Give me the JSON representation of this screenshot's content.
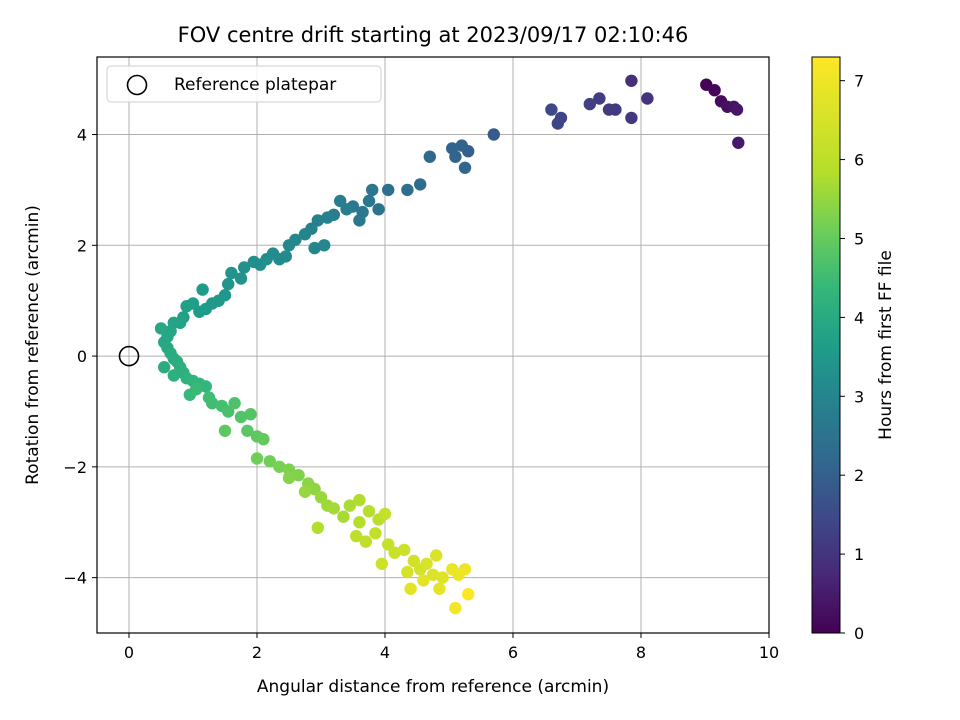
{
  "chart_data": {
    "type": "scatter",
    "title": "FOV centre drift starting at 2023/09/17 02:10:46",
    "xlabel": "Angular distance from reference (arcmin)",
    "ylabel": "Rotation from reference (arcmin)",
    "colorbar_label": "Hours from first FF file",
    "xlim": [
      -0.5,
      10
    ],
    "ylim": [
      -5,
      5.4
    ],
    "clim": [
      0,
      7.3
    ],
    "xticks": [
      0,
      2,
      4,
      6,
      8,
      10
    ],
    "yticks": [
      -4,
      -2,
      0,
      2,
      4
    ],
    "colorbar_ticks": [
      0,
      1,
      2,
      3,
      4,
      5,
      6,
      7
    ],
    "grid": true,
    "colormap": "viridis",
    "legend": {
      "placement": "top-left",
      "entries": [
        "Reference platepar"
      ]
    },
    "reference_point": {
      "x": 0,
      "y": 0
    },
    "points": [
      [
        9.02,
        4.9,
        0.05
      ],
      [
        9.15,
        4.8,
        0.1
      ],
      [
        9.25,
        4.6,
        0.2
      ],
      [
        9.35,
        4.5,
        0.28
      ],
      [
        9.45,
        4.5,
        0.35
      ],
      [
        9.5,
        4.45,
        0.4
      ],
      [
        9.52,
        3.85,
        0.45
      ],
      [
        7.85,
        4.97,
        0.9
      ],
      [
        8.1,
        4.65,
        1.0
      ],
      [
        7.85,
        4.3,
        1.05
      ],
      [
        7.6,
        4.45,
        1.1
      ],
      [
        7.5,
        4.45,
        1.15
      ],
      [
        7.35,
        4.65,
        1.2
      ],
      [
        7.2,
        4.55,
        1.25
      ],
      [
        6.75,
        4.3,
        1.35
      ],
      [
        6.7,
        4.2,
        1.4
      ],
      [
        6.6,
        4.45,
        1.45
      ],
      [
        5.7,
        4.0,
        1.9
      ],
      [
        5.3,
        3.7,
        2.0
      ],
      [
        5.2,
        3.8,
        2.05
      ],
      [
        5.1,
        3.6,
        2.1
      ],
      [
        5.05,
        3.75,
        2.12
      ],
      [
        5.25,
        3.4,
        2.15
      ],
      [
        4.7,
        3.6,
        2.2
      ],
      [
        4.55,
        3.1,
        2.3
      ],
      [
        4.35,
        3.0,
        2.35
      ],
      [
        4.05,
        3.0,
        2.4
      ],
      [
        3.9,
        2.65,
        2.5
      ],
      [
        3.8,
        3.0,
        2.55
      ],
      [
        3.75,
        2.8,
        2.6
      ],
      [
        3.65,
        2.6,
        2.62
      ],
      [
        3.6,
        2.45,
        2.65
      ],
      [
        3.5,
        2.7,
        2.7
      ],
      [
        3.4,
        2.65,
        2.75
      ],
      [
        3.3,
        2.8,
        2.78
      ],
      [
        3.2,
        2.55,
        2.8
      ],
      [
        3.1,
        2.5,
        2.85
      ],
      [
        2.95,
        2.45,
        2.9
      ],
      [
        2.85,
        2.3,
        2.95
      ],
      [
        2.75,
        2.2,
        3.0
      ],
      [
        2.9,
        1.95,
        3.0
      ],
      [
        3.05,
        2.0,
        3.05
      ],
      [
        2.6,
        2.1,
        3.05
      ],
      [
        2.5,
        2.0,
        3.1
      ],
      [
        2.45,
        1.8,
        3.12
      ],
      [
        2.35,
        1.75,
        3.15
      ],
      [
        2.25,
        1.85,
        3.18
      ],
      [
        2.15,
        1.75,
        3.2
      ],
      [
        2.05,
        1.65,
        3.25
      ],
      [
        1.95,
        1.7,
        3.25
      ],
      [
        1.8,
        1.6,
        3.3
      ],
      [
        1.75,
        1.4,
        3.35
      ],
      [
        1.6,
        1.5,
        3.38
      ],
      [
        1.55,
        1.3,
        3.4
      ],
      [
        1.5,
        1.1,
        3.45
      ],
      [
        1.4,
        1.0,
        3.5
      ],
      [
        1.3,
        0.95,
        3.5
      ],
      [
        1.2,
        0.85,
        3.55
      ],
      [
        1.1,
        0.8,
        3.6
      ],
      [
        1.15,
        1.2,
        3.6
      ],
      [
        1.0,
        0.95,
        3.65
      ],
      [
        0.9,
        0.9,
        3.7
      ],
      [
        0.85,
        0.7,
        3.75
      ],
      [
        0.8,
        0.6,
        3.78
      ],
      [
        0.7,
        0.6,
        3.8
      ],
      [
        0.65,
        0.45,
        3.85
      ],
      [
        0.6,
        0.35,
        3.88
      ],
      [
        0.55,
        0.25,
        3.9
      ],
      [
        0.5,
        0.5,
        3.92
      ],
      [
        0.6,
        0.15,
        3.95
      ],
      [
        0.65,
        0.05,
        4.0
      ],
      [
        0.7,
        -0.05,
        4.05
      ],
      [
        0.55,
        -0.2,
        4.05
      ],
      [
        0.75,
        -0.1,
        4.1
      ],
      [
        0.8,
        -0.2,
        4.12
      ],
      [
        0.85,
        -0.3,
        4.15
      ],
      [
        0.7,
        -0.35,
        4.15
      ],
      [
        0.9,
        -0.4,
        4.2
      ],
      [
        1.0,
        -0.45,
        4.25
      ],
      [
        1.1,
        -0.5,
        4.3
      ],
      [
        1.2,
        -0.55,
        4.35
      ],
      [
        0.95,
        -0.7,
        4.4
      ],
      [
        1.05,
        -0.6,
        4.45
      ],
      [
        1.25,
        -0.75,
        4.5
      ],
      [
        1.3,
        -0.85,
        4.55
      ],
      [
        1.45,
        -0.9,
        4.6
      ],
      [
        1.55,
        -1.0,
        4.65
      ],
      [
        1.65,
        -0.85,
        4.7
      ],
      [
        1.75,
        -1.1,
        4.75
      ],
      [
        1.9,
        -1.05,
        4.8
      ],
      [
        1.85,
        -1.35,
        4.85
      ],
      [
        2.0,
        -1.45,
        4.9
      ],
      [
        1.5,
        -1.35,
        4.9
      ],
      [
        2.1,
        -1.5,
        4.95
      ],
      [
        2.0,
        -1.85,
        5.1
      ],
      [
        2.2,
        -1.9,
        5.15
      ],
      [
        2.35,
        -2.0,
        5.2
      ],
      [
        2.5,
        -2.05,
        5.25
      ],
      [
        2.65,
        -2.15,
        5.3
      ],
      [
        2.5,
        -2.2,
        5.35
      ],
      [
        2.8,
        -2.3,
        5.4
      ],
      [
        2.9,
        -2.4,
        5.45
      ],
      [
        2.75,
        -2.45,
        5.5
      ],
      [
        3.0,
        -2.55,
        5.55
      ],
      [
        3.1,
        -2.7,
        5.6
      ],
      [
        3.2,
        -2.75,
        5.65
      ],
      [
        3.35,
        -2.9,
        5.7
      ],
      [
        3.45,
        -2.7,
        5.75
      ],
      [
        2.95,
        -3.1,
        5.8
      ],
      [
        3.6,
        -2.6,
        5.8
      ],
      [
        3.6,
        -3.0,
        5.85
      ],
      [
        3.75,
        -2.8,
        5.9
      ],
      [
        3.9,
        -2.95,
        5.95
      ],
      [
        3.55,
        -3.25,
        6.0
      ],
      [
        3.7,
        -3.35,
        6.05
      ],
      [
        3.85,
        -3.2,
        6.1
      ],
      [
        4.0,
        -2.85,
        6.15
      ],
      [
        4.05,
        -3.4,
        6.2
      ],
      [
        4.15,
        -3.55,
        6.25
      ],
      [
        4.3,
        -3.5,
        6.3
      ],
      [
        3.95,
        -3.75,
        6.35
      ],
      [
        4.45,
        -3.7,
        6.4
      ],
      [
        4.55,
        -3.85,
        6.45
      ],
      [
        4.35,
        -3.9,
        6.5
      ],
      [
        4.65,
        -3.75,
        6.55
      ],
      [
        4.8,
        -3.6,
        6.6
      ],
      [
        4.75,
        -3.95,
        6.65
      ],
      [
        4.9,
        -4.0,
        6.7
      ],
      [
        4.6,
        -4.05,
        6.75
      ],
      [
        4.4,
        -4.2,
        6.8
      ],
      [
        4.85,
        -4.2,
        6.85
      ],
      [
        5.05,
        -3.85,
        6.9
      ],
      [
        5.15,
        -3.95,
        6.95
      ],
      [
        5.25,
        -3.85,
        7.0
      ],
      [
        5.1,
        -4.55,
        7.1
      ],
      [
        5.3,
        -4.3,
        7.25
      ]
    ]
  }
}
